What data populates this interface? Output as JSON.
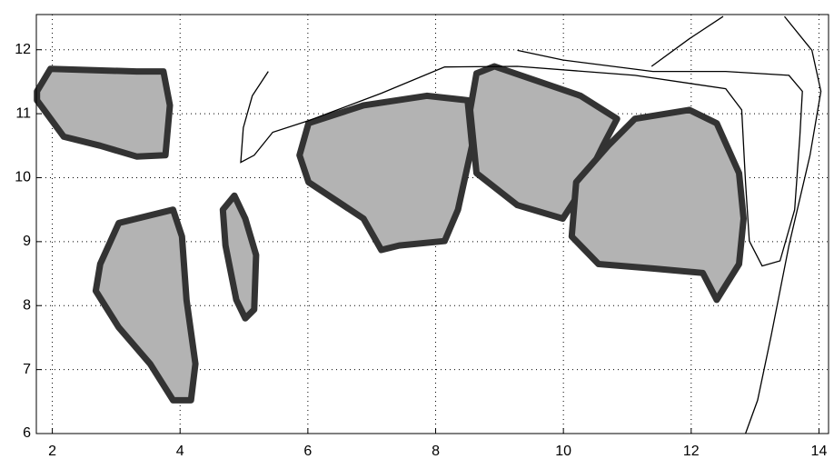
{
  "chart_data": {
    "type": "region",
    "xlim": [
      1.75,
      14.15
    ],
    "ylim": [
      6,
      12.55
    ],
    "xticks": [
      2,
      4,
      6,
      8,
      10,
      12,
      14
    ],
    "yticks": [
      6,
      7,
      8,
      9,
      10,
      11,
      12
    ],
    "grid": true,
    "region_fill": "#b3b3b3",
    "region_edge": "#333333",
    "line_color": "#000000",
    "regions": [
      {
        "x": [
          1.76,
          1.97,
          3.32,
          3.74,
          3.84,
          3.77,
          3.32,
          2.75,
          2.18,
          1.76
        ],
        "y": [
          11.35,
          11.7,
          11.66,
          11.66,
          11.13,
          10.35,
          10.33,
          10.5,
          10.64,
          11.21
        ]
      },
      {
        "x": [
          3.04,
          3.89,
          4.03,
          4.1,
          4.24,
          4.17,
          3.89,
          3.53,
          3.04,
          2.68,
          2.75
        ],
        "y": [
          9.29,
          9.5,
          9.08,
          8.09,
          7.09,
          6.52,
          6.52,
          7.09,
          7.66,
          8.23,
          8.65
        ]
      },
      {
        "x": [
          4.85,
          5.02,
          5.19,
          5.16,
          5.02,
          4.88,
          4.71,
          4.67
        ],
        "y": [
          9.72,
          9.36,
          8.79,
          7.94,
          7.8,
          8.09,
          8.94,
          9.5
        ]
      },
      {
        "x": [
          6.01,
          6.87,
          7.86,
          8.5,
          8.57,
          8.35,
          8.14,
          7.43,
          7.15,
          6.87,
          6.01,
          5.87
        ],
        "y": [
          10.85,
          11.13,
          11.28,
          11.21,
          10.5,
          9.5,
          9.01,
          8.94,
          8.87,
          9.36,
          9.93,
          10.35
        ]
      },
      {
        "x": [
          8.64,
          8.92,
          10.27,
          10.84,
          10.62,
          10.27,
          9.99,
          9.28,
          8.64,
          8.54
        ],
        "y": [
          11.63,
          11.74,
          11.28,
          10.92,
          10.5,
          9.79,
          9.36,
          9.57,
          10.07,
          11.06
        ]
      },
      {
        "x": [
          11.12,
          11.97,
          12.4,
          12.75,
          12.82,
          12.75,
          12.4,
          12.18,
          11.4,
          10.55,
          10.13,
          10.2,
          10.7
        ],
        "y": [
          10.92,
          11.06,
          10.85,
          10.07,
          9.36,
          8.65,
          8.09,
          8.51,
          8.58,
          8.65,
          9.08,
          9.93,
          10.5
        ]
      }
    ],
    "lines": [
      {
        "x": [
          5.38,
          5.13,
          4.99,
          4.95,
          5.16,
          5.45,
          6.01,
          7.15,
          8.14,
          9.28,
          11.12,
          12.54,
          12.79,
          12.85,
          12.91,
          13.11,
          13.39,
          13.62,
          13.7,
          13.74,
          13.53,
          12.54,
          11.4,
          9.99,
          9.28
        ],
        "y": [
          11.66,
          11.28,
          10.78,
          10.24,
          10.35,
          10.71,
          10.89,
          11.32,
          11.73,
          11.74,
          11.6,
          11.39,
          11.06,
          9.93,
          9.01,
          8.62,
          8.7,
          9.5,
          10.64,
          11.35,
          11.6,
          11.66,
          11.66,
          11.84,
          11.99
        ]
      },
      {
        "x": [
          11.38,
          11.97,
          12.5
        ],
        "y": [
          11.74,
          12.17,
          12.52
        ]
      },
      {
        "x": [
          13.46,
          13.89,
          14.03,
          13.86,
          13.53,
          13.25,
          13.04,
          12.85
        ],
        "y": [
          12.52,
          11.99,
          11.35,
          10.35,
          8.94,
          7.52,
          6.52,
          6
        ]
      }
    ]
  }
}
